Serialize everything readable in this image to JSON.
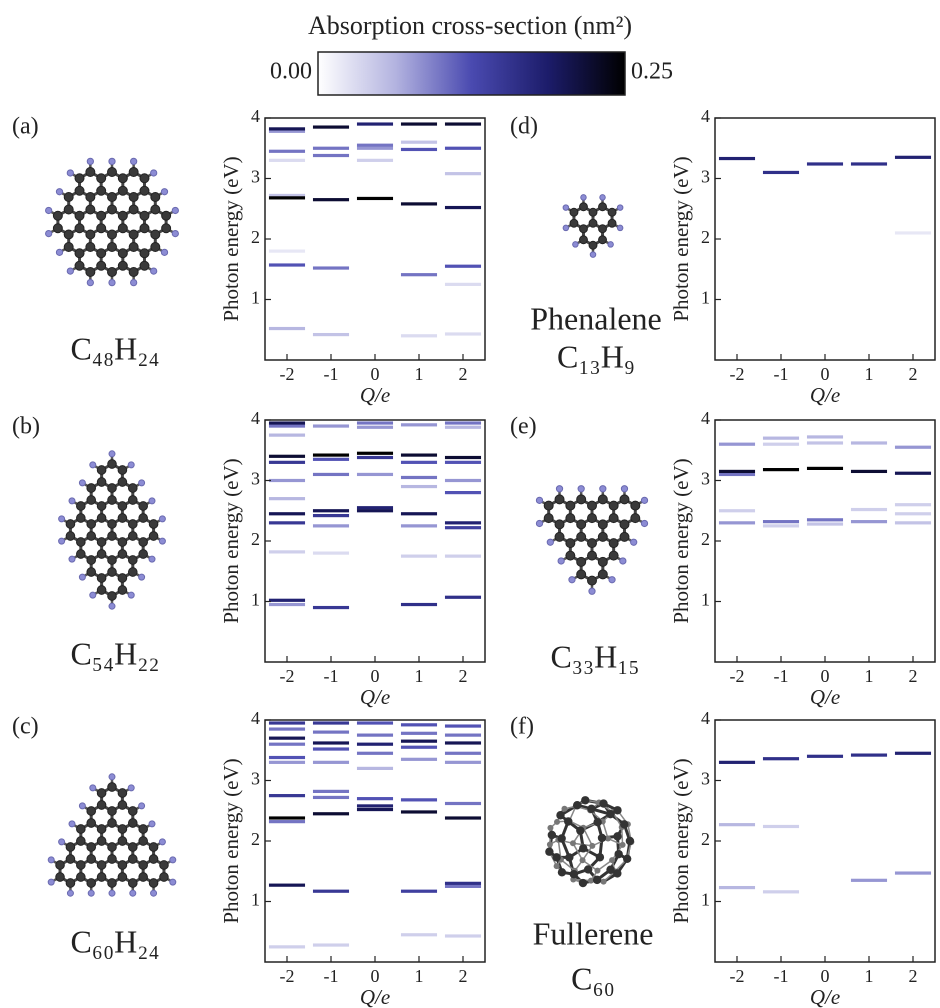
{
  "colorbar": {
    "title": "Absorption cross-section (nm²)",
    "lim": [
      0,
      0.25
    ],
    "ticks": [
      {
        "value": 0,
        "label": "0.00"
      },
      {
        "value": 0.25,
        "label": "0.25"
      }
    ],
    "colormap": [
      "#ffffff",
      "#b4b4e0",
      "#4a4ab0",
      "#1c1c6a",
      "#000000"
    ]
  },
  "chart_data": [
    {
      "type": "line-spectrum",
      "label": "(a)",
      "formula": "C₄₈H₂₄",
      "xlabel": "Q/e",
      "ylabel": "Photon energy (eV)",
      "xlim": [
        -2.5,
        2.5
      ],
      "xticks": [
        -2,
        -1,
        0,
        1,
        2
      ],
      "ylim": [
        0,
        4
      ],
      "yticks": [
        1,
        2,
        3,
        4
      ],
      "x": [
        -2,
        -2,
        -2,
        -2,
        -2,
        -2,
        -2,
        -2,
        -2,
        -1,
        -1,
        -1,
        -1,
        -1,
        -1,
        0,
        0,
        0,
        0,
        0,
        1,
        1,
        1,
        1,
        1,
        1,
        2,
        2,
        2,
        2,
        2,
        2,
        2
      ],
      "y": [
        3.82,
        3.78,
        3.45,
        3.3,
        2.68,
        2.72,
        1.57,
        0.52,
        1.8,
        3.85,
        3.5,
        3.38,
        2.65,
        1.52,
        0.42,
        3.9,
        3.55,
        3.5,
        3.3,
        2.67,
        3.9,
        3.6,
        3.48,
        2.58,
        1.41,
        0.4,
        3.9,
        3.5,
        3.08,
        2.52,
        1.55,
        1.25,
        0.43
      ],
      "values": [
        0.2,
        0.08,
        0.1,
        0.03,
        0.25,
        0.05,
        0.12,
        0.06,
        0.02,
        0.22,
        0.1,
        0.1,
        0.22,
        0.1,
        0.05,
        0.18,
        0.1,
        0.08,
        0.04,
        0.25,
        0.22,
        0.05,
        0.12,
        0.22,
        0.1,
        0.03,
        0.22,
        0.12,
        0.05,
        0.2,
        0.12,
        0.03,
        0.03
      ]
    },
    {
      "type": "line-spectrum",
      "label": "(b)",
      "formula": "C₅₄H₂₂",
      "xlabel": "Q/e",
      "ylabel": "Photon energy (eV)",
      "xlim": [
        -2.5,
        2.5
      ],
      "xticks": [
        -2,
        -1,
        0,
        1,
        2
      ],
      "ylim": [
        0,
        4
      ],
      "yticks": [
        1,
        2,
        3,
        4
      ],
      "x": [
        -2,
        -2,
        -2,
        -2,
        -2,
        -2,
        -2,
        -2,
        -2,
        -2,
        -2,
        -2,
        -1,
        -1,
        -1,
        -1,
        -1,
        -1,
        -1,
        -1,
        -1,
        0,
        0,
        0,
        0,
        0,
        0,
        0,
        1,
        1,
        1,
        1,
        1,
        1,
        1,
        1,
        1,
        2,
        2,
        2,
        2,
        2,
        2,
        2,
        2,
        2,
        2
      ],
      "y": [
        3.95,
        3.9,
        3.75,
        3.4,
        3.3,
        3.0,
        2.7,
        2.45,
        2.3,
        1.82,
        1.02,
        0.95,
        3.9,
        3.42,
        3.35,
        3.1,
        2.5,
        2.42,
        2.25,
        1.8,
        0.9,
        3.95,
        3.88,
        3.45,
        3.38,
        3.1,
        2.55,
        2.5,
        3.92,
        3.42,
        3.3,
        3.05,
        2.9,
        2.45,
        2.25,
        1.75,
        0.95,
        3.95,
        3.88,
        3.38,
        3.3,
        3.0,
        2.8,
        2.3,
        2.22,
        1.75,
        1.07
      ],
      "values": [
        0.2,
        0.1,
        0.06,
        0.22,
        0.15,
        0.08,
        0.06,
        0.2,
        0.15,
        0.04,
        0.18,
        0.08,
        0.08,
        0.25,
        0.12,
        0.1,
        0.2,
        0.15,
        0.08,
        0.03,
        0.15,
        0.1,
        0.08,
        0.25,
        0.15,
        0.08,
        0.18,
        0.2,
        0.08,
        0.22,
        0.12,
        0.1,
        0.06,
        0.2,
        0.08,
        0.04,
        0.16,
        0.1,
        0.06,
        0.22,
        0.12,
        0.08,
        0.12,
        0.18,
        0.14,
        0.04,
        0.16
      ]
    },
    {
      "type": "line-spectrum",
      "label": "(c)",
      "formula": "C₆₀H₂₄",
      "xlabel": "Q/e",
      "ylabel": "Photon energy (eV)",
      "xlim": [
        -2.5,
        2.5
      ],
      "xticks": [
        -2,
        -1,
        0,
        1,
        2
      ],
      "ylim": [
        0,
        4
      ],
      "yticks": [
        1,
        2,
        3,
        4
      ],
      "x": [
        -2,
        -2,
        -2,
        -2,
        -2,
        -2,
        -2,
        -2,
        -2,
        -2,
        -2,
        -1,
        -1,
        -1,
        -1,
        -1,
        -1,
        -1,
        -1,
        -1,
        -1,
        0,
        0,
        0,
        0,
        0,
        0,
        0,
        0,
        1,
        1,
        1,
        1,
        1,
        1,
        1,
        1,
        1,
        2,
        2,
        2,
        2,
        2,
        2,
        2,
        2,
        2,
        2
      ],
      "y": [
        3.95,
        3.85,
        3.7,
        3.6,
        3.38,
        3.3,
        2.75,
        2.38,
        2.32,
        1.27,
        0.25,
        3.95,
        3.8,
        3.62,
        3.52,
        3.3,
        2.82,
        2.72,
        2.45,
        1.17,
        0.28,
        3.95,
        3.75,
        3.6,
        3.45,
        3.2,
        2.7,
        2.58,
        2.52,
        3.92,
        3.78,
        3.65,
        3.55,
        3.35,
        2.68,
        2.48,
        1.17,
        0.45,
        3.9,
        3.75,
        3.62,
        3.45,
        3.3,
        2.62,
        2.38,
        1.3,
        1.25,
        0.43
      ],
      "values": [
        0.15,
        0.1,
        0.2,
        0.1,
        0.12,
        0.08,
        0.15,
        0.25,
        0.1,
        0.2,
        0.04,
        0.15,
        0.1,
        0.2,
        0.12,
        0.08,
        0.1,
        0.1,
        0.22,
        0.15,
        0.04,
        0.12,
        0.1,
        0.18,
        0.1,
        0.06,
        0.12,
        0.18,
        0.2,
        0.12,
        0.1,
        0.2,
        0.12,
        0.08,
        0.12,
        0.22,
        0.14,
        0.04,
        0.12,
        0.1,
        0.2,
        0.1,
        0.08,
        0.1,
        0.22,
        0.16,
        0.1,
        0.04
      ]
    },
    {
      "type": "line-spectrum",
      "label": "(d)",
      "name": "Phenalene",
      "formula": "C₁₃H₉",
      "xlabel": "Q/e",
      "ylabel": "Photon energy (eV)",
      "xlim": [
        -2.5,
        2.5
      ],
      "xticks": [
        -2,
        -1,
        0,
        1,
        2
      ],
      "ylim": [
        0,
        4
      ],
      "yticks": [
        1,
        2,
        3,
        4
      ],
      "x": [
        -2,
        -1,
        0,
        1,
        2,
        2
      ],
      "y": [
        3.33,
        3.1,
        3.24,
        3.24,
        3.35,
        2.1
      ],
      "values": [
        0.18,
        0.16,
        0.16,
        0.16,
        0.18,
        0.02
      ]
    },
    {
      "type": "line-spectrum",
      "label": "(e)",
      "formula": "C₃₃H₁₅",
      "xlabel": "Q/e",
      "ylabel": "Photon energy (eV)",
      "xlim": [
        -2.5,
        2.5
      ],
      "xticks": [
        -2,
        -1,
        0,
        1,
        2
      ],
      "ylim": [
        0,
        4
      ],
      "yticks": [
        1,
        2,
        3,
        4
      ],
      "x": [
        -2,
        -2,
        -2,
        -2,
        -2,
        -1,
        -1,
        -1,
        -1,
        -1,
        0,
        0,
        0,
        0,
        0,
        1,
        1,
        1,
        1,
        2,
        2,
        2,
        2,
        2
      ],
      "y": [
        3.6,
        3.15,
        3.1,
        2.5,
        2.3,
        3.7,
        3.6,
        3.18,
        2.32,
        2.25,
        3.72,
        3.62,
        3.2,
        2.35,
        2.28,
        3.62,
        3.15,
        2.52,
        2.32,
        3.55,
        3.12,
        2.6,
        2.45,
        2.3
      ],
      "values": [
        0.08,
        0.22,
        0.1,
        0.04,
        0.08,
        0.06,
        0.04,
        0.25,
        0.1,
        0.04,
        0.06,
        0.05,
        0.25,
        0.1,
        0.05,
        0.06,
        0.22,
        0.04,
        0.08,
        0.08,
        0.2,
        0.04,
        0.04,
        0.05
      ]
    },
    {
      "type": "line-spectrum",
      "label": "(f)",
      "name": "Fullerene",
      "formula": "C₆₀",
      "xlabel": "Q/e",
      "ylabel": "Photon energy (eV)",
      "xlim": [
        -2.5,
        2.5
      ],
      "xticks": [
        -2,
        -1,
        0,
        1,
        2
      ],
      "ylim": [
        0,
        4
      ],
      "yticks": [
        1,
        2,
        3,
        4
      ],
      "x": [
        -2,
        -2,
        -2,
        -1,
        -1,
        -1,
        0,
        1,
        1,
        2,
        2
      ],
      "y": [
        3.3,
        2.27,
        1.23,
        3.36,
        2.24,
        1.16,
        3.4,
        3.42,
        1.35,
        3.45,
        1.47
      ],
      "values": [
        0.18,
        0.06,
        0.06,
        0.16,
        0.04,
        0.04,
        0.16,
        0.16,
        0.08,
        0.18,
        0.08
      ]
    }
  ]
}
